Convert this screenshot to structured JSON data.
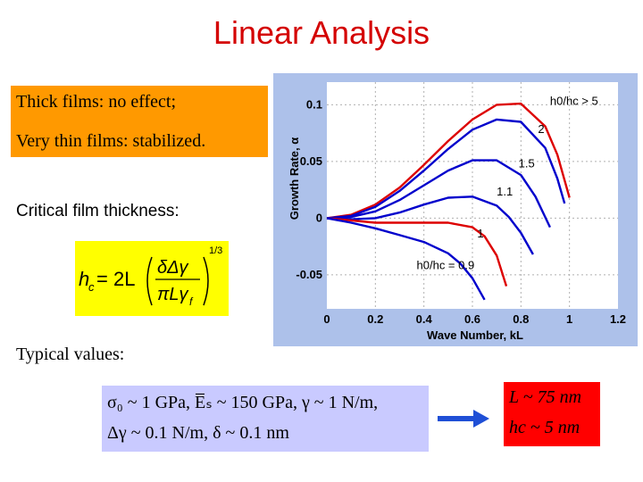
{
  "title": "Linear Analysis",
  "notes": {
    "thick": "Thick films: no effect;",
    "thin": "Very thin films: stabilized.",
    "critical": "Critical film thickness:",
    "typical": "Typical values:"
  },
  "formula": {
    "lhs": "h",
    "lhs_sub": "c",
    "eq": "= 2L",
    "num": "δΔγ",
    "den": "πLγ",
    "den_sub": "f",
    "exp": "1/3"
  },
  "values": {
    "line1": "σ₀ ~ 1 GPa, E̅ₛ ~ 150 GPa, γ ~ 1 N/m,",
    "line2": "Δγ ~ 0.1 N/m, δ ~ 0.1 nm"
  },
  "result": {
    "line1": "L ~ 75 nm",
    "line2": "hc ~ 5 nm"
  },
  "colors": {
    "title": "#d40000",
    "red_curve": "#dd0000",
    "blue_curve": "#0000cc",
    "highlight_orange": "#ff9900",
    "highlight_yellow": "#ffff00",
    "arrow": "#1f4fd6"
  },
  "chart_data": {
    "type": "line",
    "xlabel": "Wave Number, kL",
    "ylabel": "Growth Rate, α",
    "xlim": [
      0,
      1.2
    ],
    "ylim": [
      -0.08,
      0.12
    ],
    "xticks": [
      "0",
      "0.2",
      "0.4",
      "0.6",
      "0.8",
      "1",
      "1.2"
    ],
    "yticks": [
      "0.1",
      "0.05",
      "0",
      "-0.05"
    ],
    "ytick_values": [
      0.1,
      0.05,
      0,
      -0.05
    ],
    "xtick_values": [
      0,
      0.2,
      0.4,
      0.6,
      0.8,
      1,
      1.2
    ],
    "grid": true,
    "series": [
      {
        "label": "h0/hc > 5",
        "color": "red",
        "x": [
          0,
          0.1,
          0.2,
          0.3,
          0.4,
          0.5,
          0.6,
          0.7,
          0.8,
          0.9,
          0.95,
          1.0
        ],
        "y": [
          0,
          0.003,
          0.012,
          0.027,
          0.047,
          0.068,
          0.087,
          0.1,
          0.101,
          0.081,
          0.056,
          0.018
        ]
      },
      {
        "label": "2",
        "color": "blue",
        "x": [
          0,
          0.1,
          0.2,
          0.3,
          0.4,
          0.5,
          0.6,
          0.7,
          0.8,
          0.9,
          0.95,
          0.98
        ],
        "y": [
          0,
          0.002,
          0.01,
          0.024,
          0.042,
          0.061,
          0.078,
          0.087,
          0.085,
          0.062,
          0.035,
          0.013
        ]
      },
      {
        "label": "1.5",
        "color": "blue",
        "x": [
          0,
          0.1,
          0.2,
          0.3,
          0.4,
          0.5,
          0.6,
          0.7,
          0.8,
          0.86,
          0.92
        ],
        "y": [
          0,
          0.001,
          0.006,
          0.016,
          0.029,
          0.042,
          0.051,
          0.051,
          0.038,
          0.019,
          -0.008
        ]
      },
      {
        "label": "1.1",
        "color": "blue",
        "x": [
          0,
          0.1,
          0.2,
          0.3,
          0.4,
          0.5,
          0.6,
          0.7,
          0.75,
          0.8,
          0.85
        ],
        "y": [
          0,
          -0.001,
          0.0,
          0.005,
          0.012,
          0.018,
          0.019,
          0.011,
          0.001,
          -0.013,
          -0.032
        ]
      },
      {
        "label": "1",
        "color": "red",
        "x": [
          0,
          0.1,
          0.2,
          0.3,
          0.4,
          0.5,
          0.6,
          0.65,
          0.7,
          0.74
        ],
        "y": [
          0,
          -0.002,
          -0.004,
          -0.004,
          -0.004,
          -0.004,
          -0.008,
          -0.016,
          -0.033,
          -0.06
        ]
      },
      {
        "label": "h0/hc = 0.9",
        "color": "blue",
        "x": [
          0,
          0.1,
          0.2,
          0.3,
          0.4,
          0.5,
          0.55,
          0.6,
          0.65
        ],
        "y": [
          0,
          -0.004,
          -0.009,
          -0.015,
          -0.021,
          -0.031,
          -0.04,
          -0.053,
          -0.072
        ]
      }
    ],
    "annotations": [
      {
        "text": "h0/hc > 5",
        "x": 0.92,
        "y": 0.1
      },
      {
        "text": "2",
        "x": 0.87,
        "y": 0.075
      },
      {
        "text": "1.5",
        "x": 0.79,
        "y": 0.045
      },
      {
        "text": "1.1",
        "x": 0.7,
        "y": 0.02
      },
      {
        "text": "1",
        "x": 0.62,
        "y": -0.017
      },
      {
        "text": "h0/hc = 0.9",
        "x": 0.37,
        "y": -0.045
      }
    ]
  }
}
